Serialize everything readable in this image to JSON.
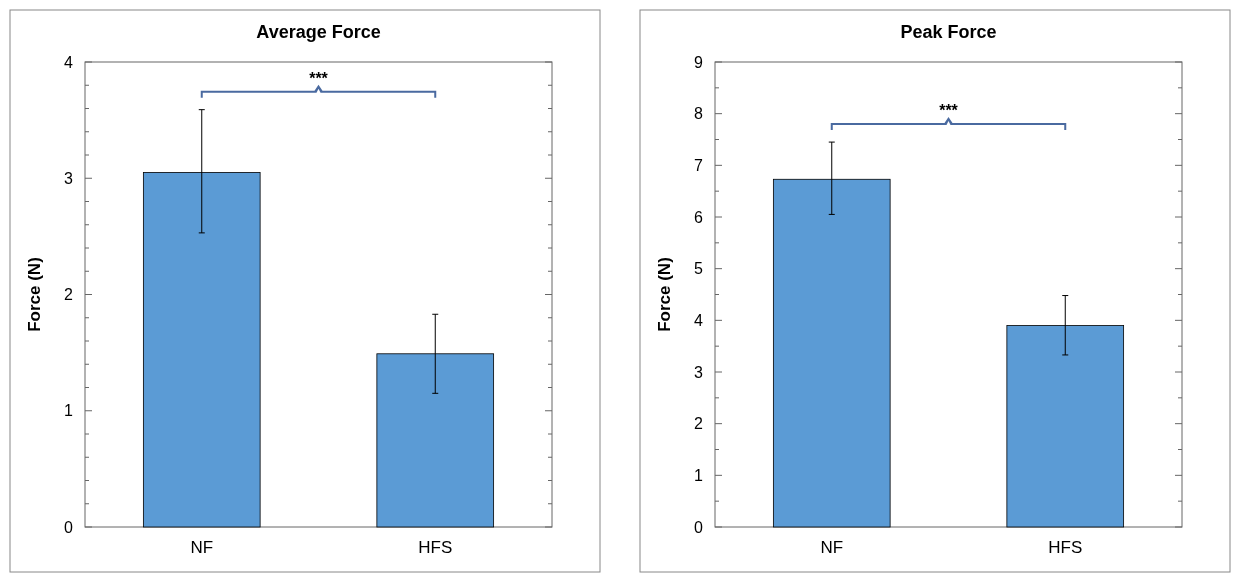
{
  "chart_data": [
    {
      "type": "bar",
      "title": "Average Force",
      "ylabel": "Force (N)",
      "categories": [
        "NF",
        "HFS"
      ],
      "values": [
        3.05,
        1.49
      ],
      "color": "#5b9bd5",
      "errors": [
        [
          2.53,
          3.59
        ],
        [
          1.15,
          1.83
        ]
      ],
      "ylim": [
        0,
        4
      ],
      "yticks": [
        0,
        {
          "value": 0.2,
          "label": null
        },
        {
          "value": 0.4,
          "label": null
        },
        {
          "value": 0.6,
          "label": null
        },
        {
          "value": 0.8,
          "label": null
        },
        1,
        {
          "value": 1.2,
          "label": null
        },
        {
          "value": 1.4,
          "label": null
        },
        {
          "value": 1.6,
          "label": null
        },
        {
          "value": 1.8,
          "label": null
        },
        2,
        {
          "value": 2.2,
          "label": null
        },
        {
          "value": 2.4,
          "label": null
        },
        {
          "value": 2.6,
          "label": null
        },
        {
          "value": 2.8,
          "label": null
        },
        3,
        {
          "value": 3.2,
          "label": null
        },
        {
          "value": 3.4,
          "label": null
        },
        {
          "value": 3.6,
          "label": null
        },
        {
          "value": 3.8,
          "label": null
        },
        4
      ],
      "annotations": [
        "***"
      ]
    },
    {
      "type": "bar",
      "title": "Peak Force",
      "ylabel": "Force (N)",
      "categories": [
        "NF",
        "HFS"
      ],
      "values": [
        6.73,
        3.9
      ],
      "color": "#5b9bd5",
      "errors": [
        [
          6.05,
          7.45
        ],
        [
          3.33,
          4.48
        ]
      ],
      "ylim": [
        0,
        9
      ],
      "yticks": [
        0,
        {
          "value": 0.5,
          "label": null
        },
        1,
        {
          "value": 1.5,
          "label": null
        },
        2,
        {
          "value": 2.5,
          "label": null
        },
        3,
        {
          "value": 3.5,
          "label": null
        },
        4,
        {
          "value": 4.5,
          "label": null
        },
        5,
        {
          "value": 5.5,
          "label": null
        },
        6,
        {
          "value": 6.5,
          "label": null
        },
        7,
        {
          "value": 7.5,
          "label": null
        },
        8,
        {
          "value": 8.5,
          "label": null
        },
        9
      ],
      "annotations": [
        "***"
      ]
    }
  ]
}
